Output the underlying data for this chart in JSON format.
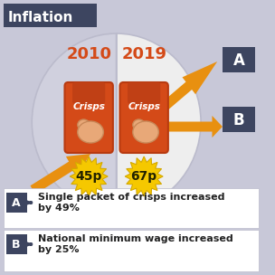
{
  "background_color": "#c8c8d8",
  "title": "Inflation",
  "title_bg": "#3d4560",
  "title_color": "#ffffff",
  "year_left": "2010",
  "year_right": "2019",
  "price_left": "45p",
  "price_right": "67p",
  "price_bg": "#f5c800",
  "crisp_bag_color": "#d44a18",
  "crisp_bag_dark": "#b83a10",
  "crisp_bag_top": "#c04015",
  "crisp_chip_color": "#e8a878",
  "crisp_chip_edge": "#c88858",
  "arrow_color": "#e89010",
  "label_bg": "#3d4560",
  "legend_bg": "#f0f0f8",
  "text_a_line1": "Single packet of crisps increased",
  "text_a_line2": "by 49%",
  "text_b_line1": "National minimum wage increased",
  "text_b_line2": "by 25%",
  "year_color": "#d44a18",
  "circle_left": "#d0d0de",
  "circle_right": "#eeeeee",
  "circle_border": "#bbbbcc",
  "divider_color": "#bbbbcc"
}
